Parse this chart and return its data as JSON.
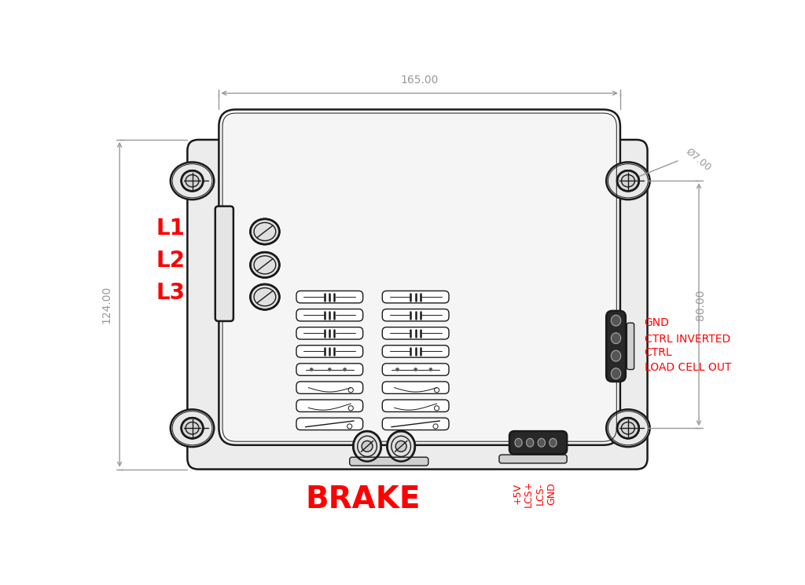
{
  "bg_color": "#ffffff",
  "line_color": "#1a1a1a",
  "dim_color": "#999999",
  "red_color": "#ff0000",
  "dim_165": "165.00",
  "dim_124": "124.00",
  "dim_80": "80.00",
  "dim_7": "Ø7.00",
  "label_L1": "L1",
  "label_L2": "L2",
  "label_L3": "L3",
  "label_brake": "BRAKE",
  "label_gnd": "GND",
  "label_ctrl_inv": "CTRL INVERTED",
  "label_ctrl": "CTRL",
  "label_lcout": "LOAD CELL OUT",
  "label_5v": "+5V",
  "label_lcsp": "LCS+",
  "label_lcsm": "LCS-",
  "label_gnd2": "GND"
}
